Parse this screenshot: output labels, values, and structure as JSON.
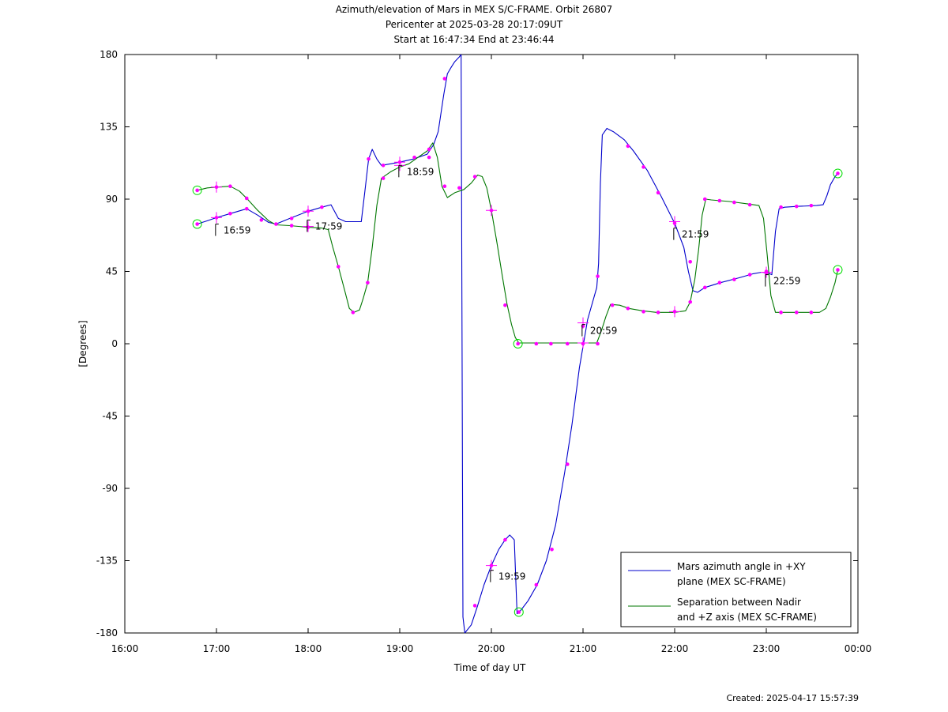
{
  "chart_data": {
    "type": "line",
    "title": "Azimuth/elevation of Mars in MEX S/C-FRAME.  Orbit 26807",
    "subtitle_lines": [
      "Pericenter at 2025-03-28 20:17:09UT",
      "Start at 16:47:34 End at 23:46:44"
    ],
    "xlabel": "Time of day UT",
    "ylabel": "[Degrees]",
    "xlim": [
      16,
      24
    ],
    "ylim": [
      -180,
      180
    ],
    "x_ticks": [
      {
        "v": 16,
        "label": "16:00"
      },
      {
        "v": 17,
        "label": "17:00"
      },
      {
        "v": 18,
        "label": "18:00"
      },
      {
        "v": 19,
        "label": "19:00"
      },
      {
        "v": 20,
        "label": "20:00"
      },
      {
        "v": 21,
        "label": "21:00"
      },
      {
        "v": 22,
        "label": "22:00"
      },
      {
        "v": 23,
        "label": "23:00"
      },
      {
        "v": 24,
        "label": "00:00"
      }
    ],
    "y_ticks": [
      {
        "v": 180,
        "label": "180"
      },
      {
        "v": 135,
        "label": "135"
      },
      {
        "v": 90,
        "label": "90"
      },
      {
        "v": 45,
        "label": "45"
      },
      {
        "v": 0,
        "label": "0"
      },
      {
        "v": -45,
        "label": "-45"
      },
      {
        "v": -90,
        "label": "-90"
      },
      {
        "v": -135,
        "label": "-135"
      },
      {
        "v": -180,
        "label": "-180"
      }
    ],
    "series": [
      {
        "name": "Mars azimuth angle in +XY plane (MEX SC-FRAME)",
        "legend_lines": [
          "Mars azimuth angle in +XY",
          "plane (MEX SC-FRAME)"
        ],
        "color": "#0000cc",
        "segments": [
          [
            [
              16.79,
              74.5
            ],
            [
              16.9,
              76.5
            ],
            [
              17.0,
              78.5
            ],
            [
              17.15,
              81
            ],
            [
              17.33,
              84
            ],
            [
              17.45,
              80
            ],
            [
              17.57,
              75.5
            ],
            [
              17.65,
              74.5
            ],
            [
              17.8,
              78
            ],
            [
              18.0,
              82.5
            ],
            [
              18.15,
              85
            ],
            [
              18.25,
              86.5
            ],
            [
              18.33,
              78
            ],
            [
              18.41,
              76
            ],
            [
              18.5,
              76
            ],
            [
              18.58,
              76
            ],
            [
              18.62,
              95
            ],
            [
              18.66,
              115
            ],
            [
              18.7,
              121
            ],
            [
              18.75,
              115
            ],
            [
              18.8,
              111
            ],
            [
              18.9,
              112
            ],
            [
              19.0,
              113
            ],
            [
              19.15,
              115
            ],
            [
              19.3,
              118
            ],
            [
              19.37,
              124
            ],
            [
              19.42,
              132
            ],
            [
              19.48,
              155
            ],
            [
              19.52,
              168
            ],
            [
              19.56,
              172
            ],
            [
              19.6,
              175.5
            ],
            [
              19.65,
              178.5
            ],
            [
              19.67,
              180
            ]
          ],
          [
            [
              19.67,
              180
            ],
            [
              19.69,
              -170
            ],
            [
              19.71,
              -180
            ]
          ],
          [
            [
              19.71,
              -180
            ],
            [
              19.78,
              -175
            ],
            [
              19.85,
              -163
            ],
            [
              19.92,
              -150
            ],
            [
              20.0,
              -138
            ],
            [
              20.08,
              -128
            ],
            [
              20.15,
              -122
            ],
            [
              20.2,
              -119
            ],
            [
              20.25,
              -122
            ],
            [
              20.28,
              -168
            ],
            [
              20.32,
              -166
            ],
            [
              20.4,
              -160
            ],
            [
              20.5,
              -150
            ],
            [
              20.6,
              -135
            ],
            [
              20.7,
              -113
            ],
            [
              20.8,
              -80
            ],
            [
              20.88,
              -50
            ],
            [
              20.96,
              -15
            ],
            [
              21.05,
              15
            ],
            [
              21.15,
              35
            ],
            [
              21.17,
              50
            ],
            [
              21.19,
              100
            ],
            [
              21.21,
              130
            ],
            [
              21.26,
              134
            ],
            [
              21.33,
              132
            ],
            [
              21.45,
              127
            ],
            [
              21.55,
              120
            ],
            [
              21.7,
              108
            ],
            [
              21.85,
              92
            ],
            [
              22.0,
              75
            ],
            [
              22.1,
              60
            ],
            [
              22.15,
              45
            ],
            [
              22.2,
              33
            ],
            [
              22.25,
              32
            ],
            [
              22.33,
              35
            ],
            [
              22.5,
              38
            ],
            [
              22.7,
              41
            ],
            [
              22.85,
              43.5
            ],
            [
              22.95,
              44.5
            ],
            [
              23.02,
              44
            ],
            [
              23.06,
              43
            ],
            [
              23.1,
              70
            ],
            [
              23.14,
              84
            ],
            [
              23.2,
              85
            ],
            [
              23.35,
              85.5
            ],
            [
              23.55,
              86
            ],
            [
              23.62,
              86.5
            ],
            [
              23.66,
              92
            ],
            [
              23.7,
              99
            ],
            [
              23.75,
              104
            ],
            [
              23.78,
              106
            ]
          ]
        ]
      },
      {
        "name": "Separation between Nadir and +Z axis (MEX SC-FRAME)",
        "legend_lines": [
          "Separation between Nadir",
          "and +Z axis (MEX SC-FRAME)"
        ],
        "color": "#007700",
        "segments": [
          [
            [
              16.79,
              95.5
            ],
            [
              16.9,
              97
            ],
            [
              17.0,
              97.5
            ],
            [
              17.15,
              98
            ],
            [
              17.25,
              95
            ],
            [
              17.33,
              90.5
            ],
            [
              17.45,
              83
            ],
            [
              17.57,
              76.5
            ],
            [
              17.65,
              74
            ],
            [
              17.8,
              73.5
            ],
            [
              18.0,
              72.5
            ],
            [
              18.15,
              72
            ],
            [
              18.22,
              71
            ],
            [
              18.27,
              60
            ],
            [
              18.33,
              48
            ],
            [
              18.4,
              33
            ],
            [
              18.45,
              22
            ],
            [
              18.5,
              19.5
            ],
            [
              18.56,
              21
            ],
            [
              18.6,
              28
            ],
            [
              18.65,
              38
            ],
            [
              18.7,
              60
            ],
            [
              18.75,
              86
            ],
            [
              18.8,
              103
            ],
            [
              18.9,
              107
            ],
            [
              19.0,
              110
            ],
            [
              19.1,
              112
            ],
            [
              19.2,
              116
            ],
            [
              19.3,
              120
            ],
            [
              19.36,
              125
            ],
            [
              19.41,
              116
            ],
            [
              19.46,
              98
            ],
            [
              19.52,
              91
            ],
            [
              19.6,
              94
            ],
            [
              19.7,
              96
            ],
            [
              19.78,
              100
            ],
            [
              19.85,
              105
            ],
            [
              19.9,
              104
            ],
            [
              19.95,
              97
            ],
            [
              20.0,
              83
            ],
            [
              20.06,
              63
            ],
            [
              20.12,
              42
            ],
            [
              20.17,
              25
            ],
            [
              20.22,
              12
            ],
            [
              20.26,
              4
            ],
            [
              20.3,
              0.5
            ],
            [
              20.4,
              0.5
            ],
            [
              20.6,
              0.5
            ],
            [
              20.8,
              0.5
            ],
            [
              21.0,
              0.5
            ],
            [
              21.15,
              0.5
            ],
            [
              21.2,
              8
            ],
            [
              21.25,
              17
            ],
            [
              21.3,
              24.5
            ],
            [
              21.4,
              24
            ],
            [
              21.5,
              22
            ],
            [
              21.65,
              20.5
            ],
            [
              21.8,
              19.5
            ],
            [
              22.0,
              19.5
            ],
            [
              22.12,
              20.5
            ],
            [
              22.17,
              26
            ],
            [
              22.22,
              40
            ],
            [
              22.26,
              58
            ],
            [
              22.3,
              80
            ],
            [
              22.34,
              90
            ],
            [
              22.4,
              89.5
            ],
            [
              22.6,
              88.5
            ],
            [
              22.8,
              87
            ],
            [
              22.92,
              86
            ],
            [
              22.97,
              78
            ],
            [
              23.01,
              55
            ],
            [
              23.05,
              30
            ],
            [
              23.1,
              19.5
            ],
            [
              23.2,
              19.5
            ],
            [
              23.4,
              19.5
            ],
            [
              23.58,
              19.5
            ],
            [
              23.65,
              22
            ],
            [
              23.7,
              29
            ],
            [
              23.75,
              38
            ],
            [
              23.78,
              46
            ]
          ]
        ]
      }
    ],
    "markers": [
      {
        "x": 16.79,
        "y": 74.5
      },
      {
        "x": 16.79,
        "y": 95.5
      },
      {
        "x": 17.0,
        "y": 97.5
      },
      {
        "x": 17.0,
        "y": 78.5
      },
      {
        "x": 17.15,
        "y": 81
      },
      {
        "x": 17.15,
        "y": 98
      },
      {
        "x": 17.33,
        "y": 84
      },
      {
        "x": 17.33,
        "y": 90.5
      },
      {
        "x": 17.49,
        "y": 77
      },
      {
        "x": 17.65,
        "y": 74.5
      },
      {
        "x": 17.82,
        "y": 78
      },
      {
        "x": 17.82,
        "y": 73.5
      },
      {
        "x": 18.0,
        "y": 82.5
      },
      {
        "x": 18.0,
        "y": 72.5
      },
      {
        "x": 18.15,
        "y": 85
      },
      {
        "x": 18.33,
        "y": 48
      },
      {
        "x": 18.49,
        "y": 19.5
      },
      {
        "x": 18.65,
        "y": 38
      },
      {
        "x": 18.66,
        "y": 115
      },
      {
        "x": 18.82,
        "y": 103
      },
      {
        "x": 18.82,
        "y": 111
      },
      {
        "x": 19.0,
        "y": 113
      },
      {
        "x": 19.16,
        "y": 116
      },
      {
        "x": 19.32,
        "y": 116
      },
      {
        "x": 19.32,
        "y": 121
      },
      {
        "x": 19.49,
        "y": 98
      },
      {
        "x": 19.49,
        "y": 165
      },
      {
        "x": 19.65,
        "y": 97
      },
      {
        "x": 19.82,
        "y": -163
      },
      {
        "x": 19.82,
        "y": 104
      },
      {
        "x": 20.0,
        "y": 83
      },
      {
        "x": 20.0,
        "y": -138
      },
      {
        "x": 20.15,
        "y": -122
      },
      {
        "x": 20.15,
        "y": 24
      },
      {
        "x": 20.29,
        "y": 0
      },
      {
        "x": 20.3,
        "y": -167
      },
      {
        "x": 20.49,
        "y": 0
      },
      {
        "x": 20.49,
        "y": -150
      },
      {
        "x": 20.65,
        "y": 0
      },
      {
        "x": 20.66,
        "y": -128
      },
      {
        "x": 20.83,
        "y": 0
      },
      {
        "x": 20.83,
        "y": -75
      },
      {
        "x": 21.0,
        "y": 0
      },
      {
        "x": 21.0,
        "y": 11
      },
      {
        "x": 21.16,
        "y": 0
      },
      {
        "x": 21.16,
        "y": 42
      },
      {
        "x": 21.32,
        "y": 24
      },
      {
        "x": 21.49,
        "y": 22
      },
      {
        "x": 21.49,
        "y": 123
      },
      {
        "x": 21.66,
        "y": 20
      },
      {
        "x": 21.66,
        "y": 110
      },
      {
        "x": 21.82,
        "y": 19.5
      },
      {
        "x": 21.82,
        "y": 94
      },
      {
        "x": 22.0,
        "y": 75
      },
      {
        "x": 22.0,
        "y": 20
      },
      {
        "x": 22.17,
        "y": 26
      },
      {
        "x": 22.17,
        "y": 51
      },
      {
        "x": 22.33,
        "y": 35
      },
      {
        "x": 22.33,
        "y": 90
      },
      {
        "x": 22.49,
        "y": 38
      },
      {
        "x": 22.49,
        "y": 89
      },
      {
        "x": 22.65,
        "y": 40
      },
      {
        "x": 22.65,
        "y": 88
      },
      {
        "x": 22.82,
        "y": 43
      },
      {
        "x": 22.82,
        "y": 86.5
      },
      {
        "x": 23.0,
        "y": 45
      },
      {
        "x": 23.0,
        "y": 44
      },
      {
        "x": 23.16,
        "y": 19.5
      },
      {
        "x": 23.16,
        "y": 85
      },
      {
        "x": 23.33,
        "y": 19.5
      },
      {
        "x": 23.33,
        "y": 85.5
      },
      {
        "x": 23.49,
        "y": 19.5
      },
      {
        "x": 23.49,
        "y": 86
      },
      {
        "x": 23.78,
        "y": 106
      },
      {
        "x": 23.78,
        "y": 46
      }
    ],
    "crosses": [
      {
        "x": 17.0,
        "y": 78.5
      },
      {
        "x": 17.0,
        "y": 97.5
      },
      {
        "x": 18.0,
        "y": 82.5
      },
      {
        "x": 18.0,
        "y": 73
      },
      {
        "x": 19.0,
        "y": 113
      },
      {
        "x": 19.0,
        "y": 111
      },
      {
        "x": 20.0,
        "y": 83
      },
      {
        "x": 20.0,
        "y": -138
      },
      {
        "x": 21.0,
        "y": 13
      },
      {
        "x": 21.0,
        "y": 0.5
      },
      {
        "x": 22.0,
        "y": 76
      },
      {
        "x": 22.0,
        "y": 20
      },
      {
        "x": 23.0,
        "y": 44.5
      }
    ],
    "circles": [
      {
        "x": 16.79,
        "y": 95.5
      },
      {
        "x": 16.79,
        "y": 74.5
      },
      {
        "x": 20.29,
        "y": 0
      },
      {
        "x": 20.3,
        "y": -167
      },
      {
        "x": 23.78,
        "y": 106
      },
      {
        "x": 23.78,
        "y": 46
      }
    ],
    "annotations": [
      {
        "x": 16.99,
        "y": 74.5,
        "label": "16:59"
      },
      {
        "x": 17.99,
        "y": 77,
        "label": "17:59"
      },
      {
        "x": 18.99,
        "y": 111,
        "label": "18:59"
      },
      {
        "x": 19.99,
        "y": -141,
        "label": "19:59"
      },
      {
        "x": 20.99,
        "y": 12,
        "label": "20:59"
      },
      {
        "x": 21.99,
        "y": 72,
        "label": "21:59"
      },
      {
        "x": 22.99,
        "y": 43,
        "label": "22:59"
      }
    ],
    "legend_position": "bottom-right",
    "marker_color": "#ff00ff",
    "circle_color": "#00dd00",
    "frame_color": "#000000"
  },
  "footer": {
    "created": "Created: 2025-04-17 15:57:39"
  }
}
